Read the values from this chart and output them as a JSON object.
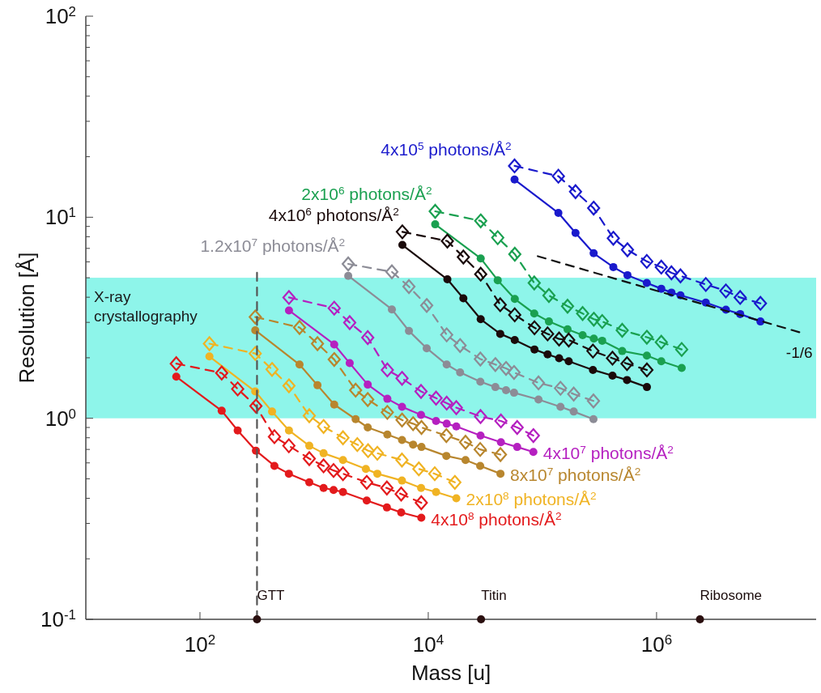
{
  "chart_data": {
    "type": "line",
    "xlabel": "Mass [u]",
    "ylabel": "Resolution [Å]",
    "log": "xy",
    "xlim": [
      10,
      25000000
    ],
    "ylim": [
      0.1,
      100
    ],
    "xticks": [
      {
        "value": 100,
        "label": "10$^{2}$"
      },
      {
        "value": 10000,
        "label": "10$^{4}$"
      },
      {
        "value": 1000000,
        "label": "10$^{6}$"
      }
    ],
    "yticks": [
      {
        "value": 0.1,
        "label": "10$^{-1}$"
      },
      {
        "value": 0.2,
        "label": null
      },
      {
        "value": 0.3,
        "label": null
      },
      {
        "value": 0.4,
        "label": null
      },
      {
        "value": 0.5,
        "label": null
      },
      {
        "value": 0.6,
        "label": null
      },
      {
        "value": 0.7,
        "label": null
      },
      {
        "value": 0.8,
        "label": null
      },
      {
        "value": 0.9,
        "label": null
      },
      {
        "value": 1,
        "label": "10$^{0}$"
      },
      {
        "value": 2,
        "label": null
      },
      {
        "value": 3,
        "label": null
      },
      {
        "value": 4,
        "label": null
      },
      {
        "value": 5,
        "label": null
      },
      {
        "value": 6,
        "label": null
      },
      {
        "value": 7,
        "label": null
      },
      {
        "value": 8,
        "label": null
      },
      {
        "value": 9,
        "label": null
      },
      {
        "value": 10,
        "label": "10$^{1}$"
      },
      {
        "value": 20,
        "label": null
      },
      {
        "value": 30,
        "label": null
      },
      {
        "value": 40,
        "label": null
      },
      {
        "value": 50,
        "label": null
      },
      {
        "value": 60,
        "label": null
      },
      {
        "value": 70,
        "label": null
      },
      {
        "value": 80,
        "label": null
      },
      {
        "value": 90,
        "label": null
      },
      {
        "value": 100,
        "label": "10$^{2}$"
      }
    ],
    "bands": [
      {
        "axis": "y",
        "from": 1,
        "to": 5,
        "label": "X-ray crystallography",
        "color": "#8ef5ea"
      }
    ],
    "annotations": [
      {
        "text": "GTT",
        "x": 316,
        "y": 0.1
      },
      {
        "text": "Titin",
        "x": 29000,
        "y": 0.1
      },
      {
        "text": "Ribosome",
        "x": 2400000,
        "y": 0.1
      },
      {
        "text": "-1/6",
        "x": 17800000,
        "y": 2.68
      }
    ],
    "series": [
      {
        "name": "4x10$^{5}$ photons/Å$^{2}$",
        "type": "line",
        "color": "#1a1acc",
        "marker": "circle",
        "line_style": "solid",
        "x": [
          57000,
          138000,
          195000,
          281000,
          418000,
          556000,
          821000,
          1100000,
          1350000,
          1620000,
          2700000,
          4050000,
          5400000,
          8130000
        ],
        "values": [
          15.4,
          10.5,
          8.35,
          6.62,
          5.65,
          5.15,
          4.71,
          4.41,
          4.22,
          4.09,
          3.76,
          3.47,
          3.3,
          3.03
        ]
      },
      {
        "type": "line",
        "color": "#1a1acc",
        "marker": "diamond",
        "line_style": "dashed",
        "x": [
          57000,
          138000,
          195000,
          281000,
          418000,
          556000,
          821000,
          1100000,
          1350000,
          1620000,
          2700000,
          4050000,
          5400000,
          8130000
        ],
        "values": [
          18.0,
          16.0,
          13.4,
          11.1,
          7.86,
          6.89,
          6.03,
          5.65,
          5.29,
          5.11,
          4.63,
          4.3,
          3.99,
          3.73
        ]
      },
      {
        "name": "2x10$^{6}$ photons/Å$^{2}$",
        "type": "line",
        "color": "#1aa050",
        "marker": "circle",
        "line_style": "solid",
        "x": [
          11500,
          28800,
          40600,
          57300,
          84800,
          114000,
          166000,
          225000,
          282000,
          334000,
          500000,
          822000,
          1100000,
          1660000
        ],
        "values": [
          9.22,
          6.24,
          4.86,
          3.92,
          3.32,
          3.03,
          2.77,
          2.59,
          2.49,
          2.43,
          2.16,
          2.05,
          1.92,
          1.78
        ]
      },
      {
        "type": "line",
        "color": "#1aa050",
        "marker": "diamond",
        "line_style": "dashed",
        "x": [
          11500,
          28800,
          40600,
          57300,
          84800,
          114000,
          166000,
          225000,
          282000,
          334000,
          500000,
          822000,
          1100000,
          1660000
        ],
        "values": [
          10.7,
          9.59,
          7.91,
          6.55,
          4.71,
          4.08,
          3.61,
          3.32,
          3.11,
          3.03,
          2.74,
          2.53,
          2.39,
          2.2
        ]
      },
      {
        "name": "4x10$^{6}$ photons/Å$^{2}$",
        "type": "line",
        "color": "#1a0a0a",
        "marker": "circle",
        "line_style": "solid",
        "x": [
          5930,
          14700,
          20300,
          28800,
          42700,
          57200,
          85200,
          111000,
          140000,
          170000,
          277000,
          411000,
          551000,
          823000
        ],
        "values": [
          7.28,
          4.91,
          3.95,
          3.11,
          2.63,
          2.45,
          2.2,
          2.08,
          1.99,
          1.92,
          1.74,
          1.63,
          1.55,
          1.43
        ]
      },
      {
        "type": "line",
        "color": "#1a0a0a",
        "marker": "diamond",
        "line_style": "dashed",
        "x": [
          5930,
          14700,
          20300,
          28800,
          42700,
          57200,
          85200,
          111000,
          140000,
          170000,
          277000,
          411000,
          551000,
          823000
        ],
        "values": [
          8.46,
          7.61,
          6.34,
          5.21,
          3.67,
          3.27,
          2.82,
          2.63,
          2.48,
          2.45,
          2.16,
          1.99,
          1.87,
          1.74
        ]
      },
      {
        "name": "1.2x10$^{7}$ photons/Å$^{2}$",
        "type": "line",
        "color": "#8c8c96",
        "marker": "circle",
        "line_style": "solid",
        "x": [
          1990,
          4800,
          6770,
          9690,
          14500,
          19000,
          28600,
          38700,
          48000,
          56400,
          92400,
          144000,
          188000,
          280000
        ],
        "values": [
          5.11,
          3.48,
          2.72,
          2.23,
          1.85,
          1.69,
          1.52,
          1.43,
          1.38,
          1.34,
          1.24,
          1.14,
          1.08,
          0.99
        ]
      },
      {
        "type": "line",
        "color": "#8c8c96",
        "marker": "diamond",
        "line_style": "dashed",
        "x": [
          1990,
          4800,
          6770,
          9690,
          14500,
          19000,
          28600,
          38700,
          48000,
          56400,
          92400,
          144000,
          188000,
          280000
        ],
        "values": [
          5.86,
          5.35,
          4.52,
          3.64,
          2.6,
          2.3,
          1.97,
          1.85,
          1.77,
          1.69,
          1.5,
          1.41,
          1.32,
          1.22
        ]
      },
      {
        "name": "4x10$^{7}$ photons/Å$^{2}$",
        "type": "line",
        "color": "#b520c0",
        "marker": "circle",
        "line_style": "solid",
        "x": [
          602,
          1500,
          2050,
          2950,
          4380,
          5890,
          8640,
          11700,
          14500,
          17600,
          28700,
          43300,
          60100,
          83300
        ],
        "values": [
          3.44,
          2.33,
          1.88,
          1.47,
          1.25,
          1.14,
          1.04,
          0.97,
          0.94,
          0.91,
          0.82,
          0.76,
          0.72,
          0.68
        ]
      },
      {
        "type": "line",
        "color": "#b520c0",
        "marker": "diamond",
        "line_style": "dashed",
        "x": [
          602,
          1500,
          2050,
          2950,
          4380,
          5890,
          8640,
          11700,
          14500,
          17600,
          28700,
          43300,
          60100,
          83300
        ],
        "values": [
          3.99,
          3.53,
          2.99,
          2.52,
          1.74,
          1.58,
          1.36,
          1.26,
          1.19,
          1.13,
          1.02,
          0.97,
          0.9,
          0.82
        ]
      },
      {
        "name": "8x10$^{7}$ photons/Å$^{2}$",
        "type": "line",
        "color": "#b8862e",
        "marker": "circle",
        "line_style": "solid",
        "x": [
          305,
          745,
          1070,
          1500,
          2310,
          2950,
          4380,
          5890,
          7360,
          8720,
          14400,
          21200,
          28500,
          42900
        ],
        "values": [
          2.74,
          1.85,
          1.46,
          1.17,
          0.99,
          0.9,
          0.83,
          0.78,
          0.74,
          0.72,
          0.65,
          0.62,
          0.58,
          0.53
        ]
      },
      {
        "type": "line",
        "color": "#b8862e",
        "marker": "diamond",
        "line_style": "dashed",
        "x": [
          305,
          745,
          1070,
          1500,
          2310,
          2950,
          4380,
          5890,
          7360,
          8720,
          14400,
          21200,
          28500,
          42900
        ],
        "values": [
          3.19,
          2.83,
          2.35,
          1.96,
          1.38,
          1.24,
          1.07,
          0.98,
          0.94,
          0.9,
          0.82,
          0.76,
          0.7,
          0.66
        ]
      },
      {
        "name": "2x10$^{8}$ photons/Å$^{2}$",
        "type": "line",
        "color": "#f0b323",
        "marker": "circle",
        "line_style": "solid",
        "x": [
          121,
          305,
          428,
          602,
          907,
          1210,
          1790,
          2840,
          3580,
          5880,
          8650,
          11700,
          17600
        ],
        "values": [
          2.03,
          1.36,
          1.08,
          0.87,
          0.73,
          0.67,
          0.62,
          0.56,
          0.53,
          0.49,
          0.45,
          0.43,
          0.4
        ]
      },
      {
        "type": "line",
        "color": "#f0b323",
        "marker": "diamond",
        "line_style": "dashed",
        "x": [
          121,
          305,
          428,
          602,
          907,
          1210,
          1790,
          2390,
          2970,
          3580,
          5880,
          8270,
          11400,
          17100
        ],
        "values": [
          2.35,
          2.1,
          1.75,
          1.45,
          1.03,
          0.91,
          0.8,
          0.74,
          0.69,
          0.67,
          0.62,
          0.56,
          0.53,
          0.48
        ]
      },
      {
        "name": "4x10$^{8}$ photons/Å$^{2}$",
        "type": "line",
        "color": "#e31a1c",
        "marker": "circle",
        "line_style": "solid",
        "x": [
          62,
          155,
          214,
          309,
          449,
          601,
          907,
          1210,
          1480,
          1790,
          2890,
          4340,
          5790,
          8690
        ],
        "values": [
          1.61,
          1.09,
          0.87,
          0.69,
          0.58,
          0.53,
          0.48,
          0.45,
          0.44,
          0.43,
          0.39,
          0.36,
          0.34,
          0.32
        ]
      },
      {
        "type": "line",
        "color": "#e31a1c",
        "marker": "diamond",
        "line_style": "dashed",
        "x": [
          62,
          155,
          214,
          309,
          449,
          601,
          907,
          1210,
          1480,
          1790,
          2890,
          4340,
          5790,
          8690
        ],
        "values": [
          1.87,
          1.68,
          1.4,
          1.15,
          0.81,
          0.73,
          0.63,
          0.58,
          0.55,
          0.53,
          0.48,
          0.45,
          0.42,
          0.38
        ]
      },
      {
        "type": "line",
        "color": "#111111",
        "marker": "none",
        "line_style": "dashed",
        "x": [
          91000,
          17800000
        ],
        "values": [
          6.4,
          2.68
        ]
      },
      {
        "type": "line",
        "color": "#555555",
        "marker": "none",
        "line_style": "dashed",
        "x": [
          316,
          316
        ],
        "values": [
          0.1,
          5.3
        ]
      },
      {
        "type": "scatter",
        "color": "#2a0f0f",
        "marker": "circle",
        "x": [
          316,
          29000,
          2400000
        ],
        "values": [
          0.1,
          0.1,
          0.1
        ]
      }
    ]
  }
}
